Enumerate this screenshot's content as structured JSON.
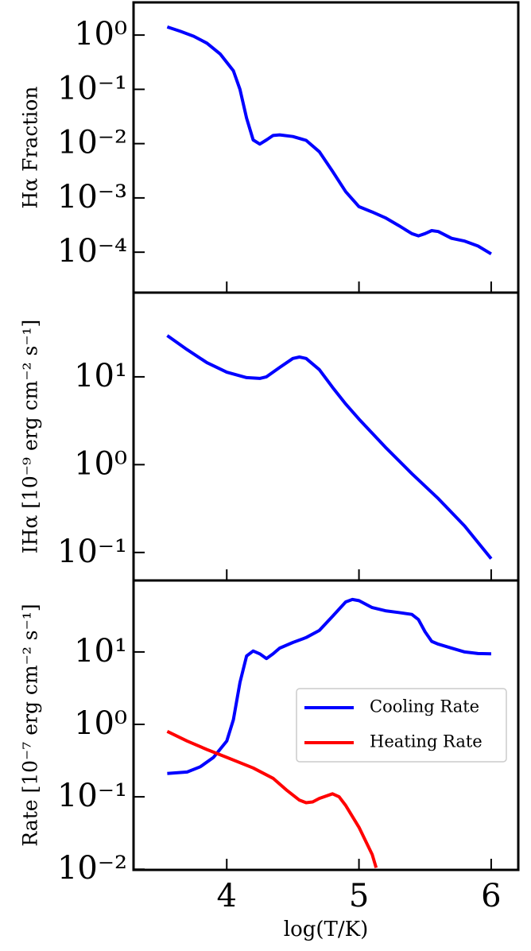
{
  "chart_data": [
    {
      "type": "line",
      "log_y": true,
      "ylabel": "Hα Fraction",
      "color": "#0000ff",
      "x": [
        3.55,
        3.65,
        3.75,
        3.85,
        3.95,
        4.05,
        4.1,
        4.15,
        4.2,
        4.25,
        4.3,
        4.35,
        4.4,
        4.5,
        4.6,
        4.7,
        4.8,
        4.9,
        5.0,
        5.1,
        5.2,
        5.3,
        5.4,
        5.45,
        5.5,
        5.55,
        5.6,
        5.7,
        5.8,
        5.9,
        6.0
      ],
      "values": [
        1.41,
        1.17,
        0.95,
        0.71,
        0.45,
        0.22,
        0.1,
        0.0295,
        0.0117,
        0.0098,
        0.0117,
        0.0141,
        0.0145,
        0.0135,
        0.0115,
        0.0071,
        0.0031,
        0.0013,
        0.00069,
        0.00055,
        0.00043,
        0.00031,
        0.00022,
        0.0002,
        0.00022,
        0.00025,
        0.00024,
        0.00018,
        0.00016,
        0.00013,
        9.3e-05
      ],
      "xlim": [
        3.295,
        6.205
      ],
      "xticks": [
        4,
        5,
        6
      ],
      "show_xtick_labels": false,
      "ylim": [
        1.8e-05,
        4
      ],
      "yticks": [
        {
          "value": 0.0001,
          "label": "10⁻⁴"
        },
        {
          "value": 0.001,
          "label": "10⁻³"
        },
        {
          "value": 0.01,
          "label": "10⁻²"
        },
        {
          "value": 0.1,
          "label": "10⁻¹"
        },
        {
          "value": 1,
          "label": "10⁰"
        }
      ]
    },
    {
      "type": "line",
      "log_y": true,
      "ylabel": "IHα [10⁻⁹ erg cm⁻² s⁻¹]",
      "color": "#0000ff",
      "x": [
        3.55,
        3.7,
        3.85,
        4.0,
        4.15,
        4.25,
        4.3,
        4.4,
        4.5,
        4.55,
        4.6,
        4.7,
        4.8,
        4.9,
        5.0,
        5.2,
        5.4,
        5.6,
        5.8,
        6.0
      ],
      "values": [
        29.5,
        20.4,
        14.5,
        11.3,
        9.8,
        9.6,
        10,
        12.8,
        16.2,
        16.8,
        16.2,
        12.1,
        7.6,
        4.9,
        3.3,
        1.58,
        0.79,
        0.41,
        0.2,
        0.085
      ],
      "xlim": [
        3.295,
        6.205
      ],
      "xticks": [
        4,
        5,
        6
      ],
      "show_xtick_labels": false,
      "ylim": [
        0.048,
        91
      ],
      "yticks": [
        {
          "value": 0.1,
          "label": "10⁻¹"
        },
        {
          "value": 1,
          "label": "10⁰"
        },
        {
          "value": 10,
          "label": "10¹"
        }
      ]
    },
    {
      "type": "line",
      "log_y": true,
      "ylabel": "Rate [10⁻⁷ erg cm⁻² s⁻¹]",
      "xlabel": "log(T/K)",
      "legend": "center right",
      "series": [
        {
          "name": "Cooling Rate",
          "color": "#0000ff",
          "x": [
            3.55,
            3.7,
            3.8,
            3.9,
            4.0,
            4.05,
            4.1,
            4.15,
            4.2,
            4.25,
            4.3,
            4.35,
            4.4,
            4.5,
            4.6,
            4.7,
            4.8,
            4.9,
            4.95,
            5.0,
            5.1,
            5.2,
            5.3,
            5.4,
            5.45,
            5.5,
            5.55,
            5.6,
            5.7,
            5.8,
            5.9,
            6.0
          ],
          "values": [
            0.21,
            0.22,
            0.26,
            0.35,
            0.59,
            1.16,
            3.8,
            8.8,
            10.3,
            9.4,
            8.1,
            9.4,
            11.3,
            13.5,
            15.8,
            19.8,
            31,
            49,
            53,
            51,
            41,
            37,
            35,
            33,
            28,
            19,
            14,
            12.8,
            11.3,
            10,
            9.5,
            9.4
          ]
        },
        {
          "name": "Heating Rate",
          "color": "#ff0000",
          "x": [
            3.55,
            3.7,
            3.85,
            4.0,
            4.2,
            4.35,
            4.45,
            4.55,
            4.6,
            4.65,
            4.7,
            4.8,
            4.85,
            4.9,
            5.0,
            5.1,
            5.13
          ],
          "values": [
            0.8,
            0.59,
            0.45,
            0.35,
            0.25,
            0.18,
            0.125,
            0.09,
            0.083,
            0.085,
            0.095,
            0.11,
            0.1,
            0.076,
            0.038,
            0.016,
            0.0105
          ]
        }
      ],
      "xlim": [
        3.295,
        6.205
      ],
      "xticks": [
        4,
        5,
        6
      ],
      "show_xtick_labels": true,
      "ylim": [
        0.0098,
        97
      ],
      "yticks": [
        {
          "value": 0.01,
          "label": "10⁻²"
        },
        {
          "value": 0.1,
          "label": "10⁻¹"
        },
        {
          "value": 1,
          "label": "10⁰"
        },
        {
          "value": 10,
          "label": "10¹"
        }
      ]
    }
  ]
}
